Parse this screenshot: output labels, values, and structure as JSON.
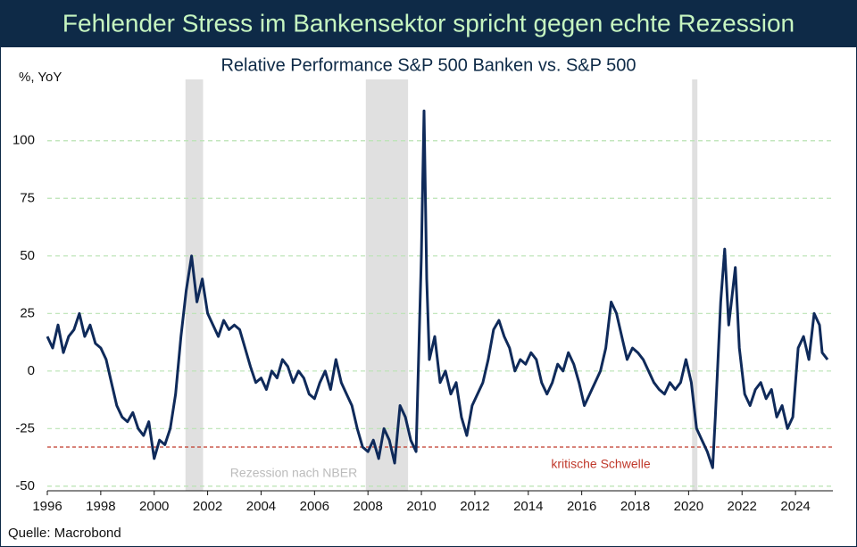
{
  "chart_data": {
    "type": "line",
    "title": "Fehlender Stress im Bankensektor spricht gegen echte Rezession",
    "subtitle": "Relative Performance S&P 500 Banken vs. S&P 500",
    "y_label": "%, YoY",
    "source": "Quelle: Macrobond",
    "recession_label": "Rezession nach NBER",
    "recessions": [
      [
        2001.17,
        2001.83
      ],
      [
        2007.92,
        2009.5
      ],
      [
        2020.13,
        2020.33
      ]
    ],
    "threshold": {
      "value": -33,
      "label": "kritische Schwelle",
      "color": "#c0392b"
    },
    "grid": true,
    "xlim": [
      1996,
      2025.4
    ],
    "xticks": [
      1996,
      1998,
      2000,
      2002,
      2004,
      2006,
      2008,
      2010,
      2012,
      2014,
      2016,
      2018,
      2020,
      2022,
      2024
    ],
    "ylim": [
      -52,
      122
    ],
    "yticks": [
      100,
      75,
      50,
      25,
      0,
      -25,
      -50
    ],
    "x": [
      1996.0,
      1996.2,
      1996.4,
      1996.6,
      1996.8,
      1997.0,
      1997.2,
      1997.4,
      1997.6,
      1997.8,
      1998.0,
      1998.2,
      1998.4,
      1998.6,
      1998.8,
      1999.0,
      1999.2,
      1999.4,
      1999.6,
      1999.8,
      2000.0,
      2000.2,
      2000.4,
      2000.6,
      2000.8,
      2001.0,
      2001.2,
      2001.4,
      2001.6,
      2001.8,
      2002.0,
      2002.2,
      2002.4,
      2002.6,
      2002.8,
      2003.0,
      2003.2,
      2003.4,
      2003.6,
      2003.8,
      2004.0,
      2004.2,
      2004.4,
      2004.6,
      2004.8,
      2005.0,
      2005.2,
      2005.4,
      2005.6,
      2005.8,
      2006.0,
      2006.2,
      2006.4,
      2006.6,
      2006.8,
      2007.0,
      2007.2,
      2007.4,
      2007.6,
      2007.8,
      2008.0,
      2008.2,
      2008.4,
      2008.6,
      2008.8,
      2009.0,
      2009.2,
      2009.4,
      2009.6,
      2009.8,
      2010.0,
      2010.1,
      2010.2,
      2010.3,
      2010.5,
      2010.7,
      2010.9,
      2011.1,
      2011.3,
      2011.5,
      2011.7,
      2011.9,
      2012.1,
      2012.3,
      2012.5,
      2012.7,
      2012.9,
      2013.1,
      2013.3,
      2013.5,
      2013.7,
      2013.9,
      2014.1,
      2014.3,
      2014.5,
      2014.7,
      2014.9,
      2015.1,
      2015.3,
      2015.5,
      2015.7,
      2015.9,
      2016.1,
      2016.3,
      2016.5,
      2016.7,
      2016.9,
      2017.1,
      2017.3,
      2017.5,
      2017.7,
      2017.9,
      2018.1,
      2018.3,
      2018.5,
      2018.7,
      2018.9,
      2019.1,
      2019.3,
      2019.5,
      2019.7,
      2019.9,
      2020.1,
      2020.3,
      2020.5,
      2020.7,
      2020.9,
      2021.0,
      2021.1,
      2021.2,
      2021.35,
      2021.5,
      2021.6,
      2021.75,
      2021.9,
      2022.1,
      2022.3,
      2022.5,
      2022.7,
      2022.9,
      2023.1,
      2023.3,
      2023.5,
      2023.7,
      2023.9,
      2024.1,
      2024.3,
      2024.5,
      2024.7,
      2024.9,
      2025.0,
      2025.2
    ],
    "series": [
      {
        "name": "Relative Performance",
        "color": "#0f2a5a",
        "values": [
          15,
          10,
          20,
          8,
          15,
          18,
          25,
          15,
          20,
          12,
          10,
          5,
          -5,
          -15,
          -20,
          -22,
          -18,
          -25,
          -28,
          -22,
          -38,
          -30,
          -32,
          -25,
          -10,
          15,
          35,
          50,
          30,
          40,
          25,
          20,
          15,
          22,
          18,
          20,
          18,
          10,
          2,
          -5,
          -3,
          -8,
          0,
          -3,
          5,
          2,
          -5,
          0,
          -3,
          -10,
          -12,
          -5,
          0,
          -8,
          5,
          -5,
          -10,
          -15,
          -25,
          -33,
          -35,
          -30,
          -38,
          -25,
          -30,
          -40,
          -15,
          -20,
          -30,
          -35,
          50,
          113,
          40,
          5,
          15,
          -5,
          0,
          -10,
          -5,
          -20,
          -28,
          -15,
          -10,
          -5,
          5,
          18,
          22,
          15,
          10,
          0,
          5,
          3,
          8,
          5,
          -5,
          -10,
          -5,
          3,
          0,
          8,
          3,
          -5,
          -15,
          -10,
          -5,
          0,
          10,
          30,
          25,
          15,
          5,
          10,
          8,
          5,
          0,
          -5,
          -8,
          -10,
          -5,
          -8,
          -5,
          5,
          -5,
          -25,
          -30,
          -35,
          -42,
          -20,
          5,
          30,
          53,
          20,
          30,
          45,
          10,
          -10,
          -15,
          -8,
          -5,
          -12,
          -8,
          -20,
          -15,
          -25,
          -20,
          10,
          15,
          5,
          25,
          20,
          8,
          5
        ]
      }
    ]
  }
}
